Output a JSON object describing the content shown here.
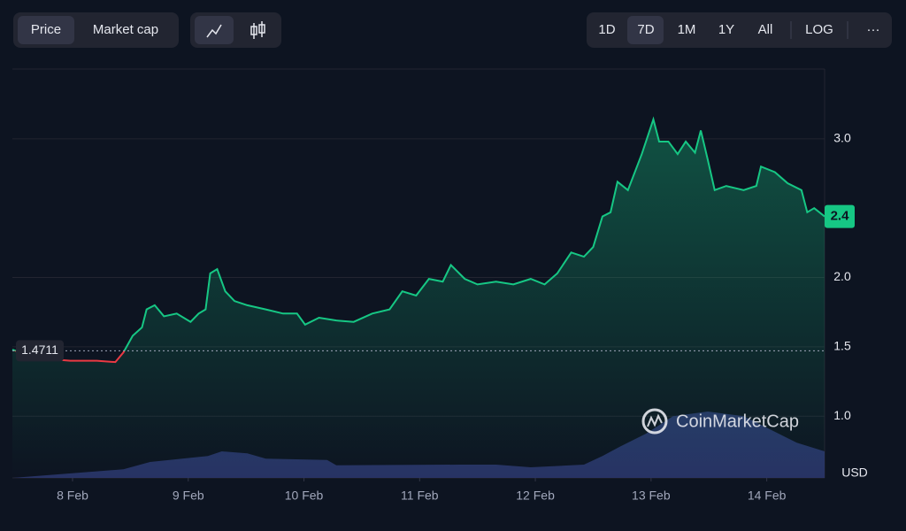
{
  "toolbar": {
    "tabs": [
      "Price",
      "Market cap"
    ],
    "ranges": [
      "1D",
      "7D",
      "1M",
      "1Y",
      "All",
      "LOG"
    ],
    "more": "···",
    "watermark": "CoinMarketCap"
  },
  "chart_data": {
    "type": "area",
    "y_unit": "USD",
    "xlim": [
      -0.52,
      6.5
    ],
    "xticks": [
      {
        "value": 0,
        "label": "8 Feb"
      },
      {
        "value": 1,
        "label": "9 Feb"
      },
      {
        "value": 2,
        "label": "10 Feb"
      },
      {
        "value": 3,
        "label": "11 Feb"
      },
      {
        "value": 4,
        "label": "12 Feb"
      },
      {
        "value": 5,
        "label": "13 Feb"
      },
      {
        "value": 6,
        "label": "14 Feb"
      }
    ],
    "ylim": [
      0.555,
      3.503
    ],
    "yticks": [
      {
        "value": 1,
        "label": "1.0"
      },
      {
        "value": 1.5,
        "label": "1.5"
      },
      {
        "value": 2,
        "label": "2.0"
      },
      {
        "value": 3,
        "label": "3.0"
      }
    ],
    "grid": true,
    "baseline": {
      "value": 1.4711,
      "label": "1.4711"
    },
    "price_label": {
      "value": 2.44,
      "label": "2.4"
    },
    "series": [
      {
        "name": "Price",
        "color": "#16c784",
        "down_color": "#ea3943",
        "x": [
          -0.52,
          -0.32,
          -0.02,
          0.21,
          0.37,
          0.44,
          0.52,
          0.6,
          0.64,
          0.71,
          0.79,
          0.9,
          1.02,
          1.09,
          1.15,
          1.19,
          1.25,
          1.32,
          1.4,
          1.51,
          1.67,
          1.82,
          1.94,
          2.01,
          2.13,
          2.28,
          2.43,
          2.59,
          2.74,
          2.85,
          2.97,
          3.08,
          3.2,
          3.27,
          3.39,
          3.5,
          3.66,
          3.81,
          3.96,
          4.08,
          4.19,
          4.31,
          4.42,
          4.5,
          4.58,
          4.65,
          4.71,
          4.8,
          4.92,
          5.02,
          5.07,
          5.15,
          5.23,
          5.3,
          5.38,
          5.43,
          5.49,
          5.55,
          5.65,
          5.8,
          5.91,
          5.95,
          6.07,
          6.18,
          6.3,
          6.35,
          6.41,
          6.5
        ],
        "values": [
          1.48,
          1.42,
          1.4,
          1.4,
          1.39,
          1.46,
          1.58,
          1.64,
          1.77,
          1.8,
          1.72,
          1.74,
          1.68,
          1.74,
          1.77,
          2.03,
          2.06,
          1.9,
          1.83,
          1.8,
          1.77,
          1.74,
          1.74,
          1.66,
          1.71,
          1.69,
          1.68,
          1.74,
          1.77,
          1.9,
          1.87,
          1.99,
          1.97,
          2.09,
          1.99,
          1.95,
          1.97,
          1.95,
          1.99,
          1.95,
          2.03,
          2.18,
          2.15,
          2.22,
          2.44,
          2.47,
          2.69,
          2.63,
          2.89,
          3.14,
          2.98,
          2.98,
          2.89,
          2.98,
          2.9,
          3.06,
          2.85,
          2.63,
          2.66,
          2.63,
          2.66,
          2.8,
          2.76,
          2.68,
          2.63,
          2.47,
          2.5,
          2.44
        ]
      }
    ],
    "volume": {
      "color": "#2d3870",
      "ylim": [
        0,
        100
      ],
      "x": [
        -0.52,
        0.44,
        0.67,
        1.17,
        1.29,
        1.51,
        1.67,
        2.2,
        2.28,
        3.35,
        3.66,
        3.96,
        4.42,
        4.58,
        4.73,
        4.96,
        5.19,
        5.49,
        5.8,
        6.03,
        6.26,
        6.5
      ],
      "values": [
        0,
        13,
        24,
        33,
        40,
        37,
        29,
        27,
        19,
        20,
        20,
        16,
        20,
        33,
        47,
        67,
        93,
        100,
        93,
        73,
        53,
        40
      ]
    }
  }
}
